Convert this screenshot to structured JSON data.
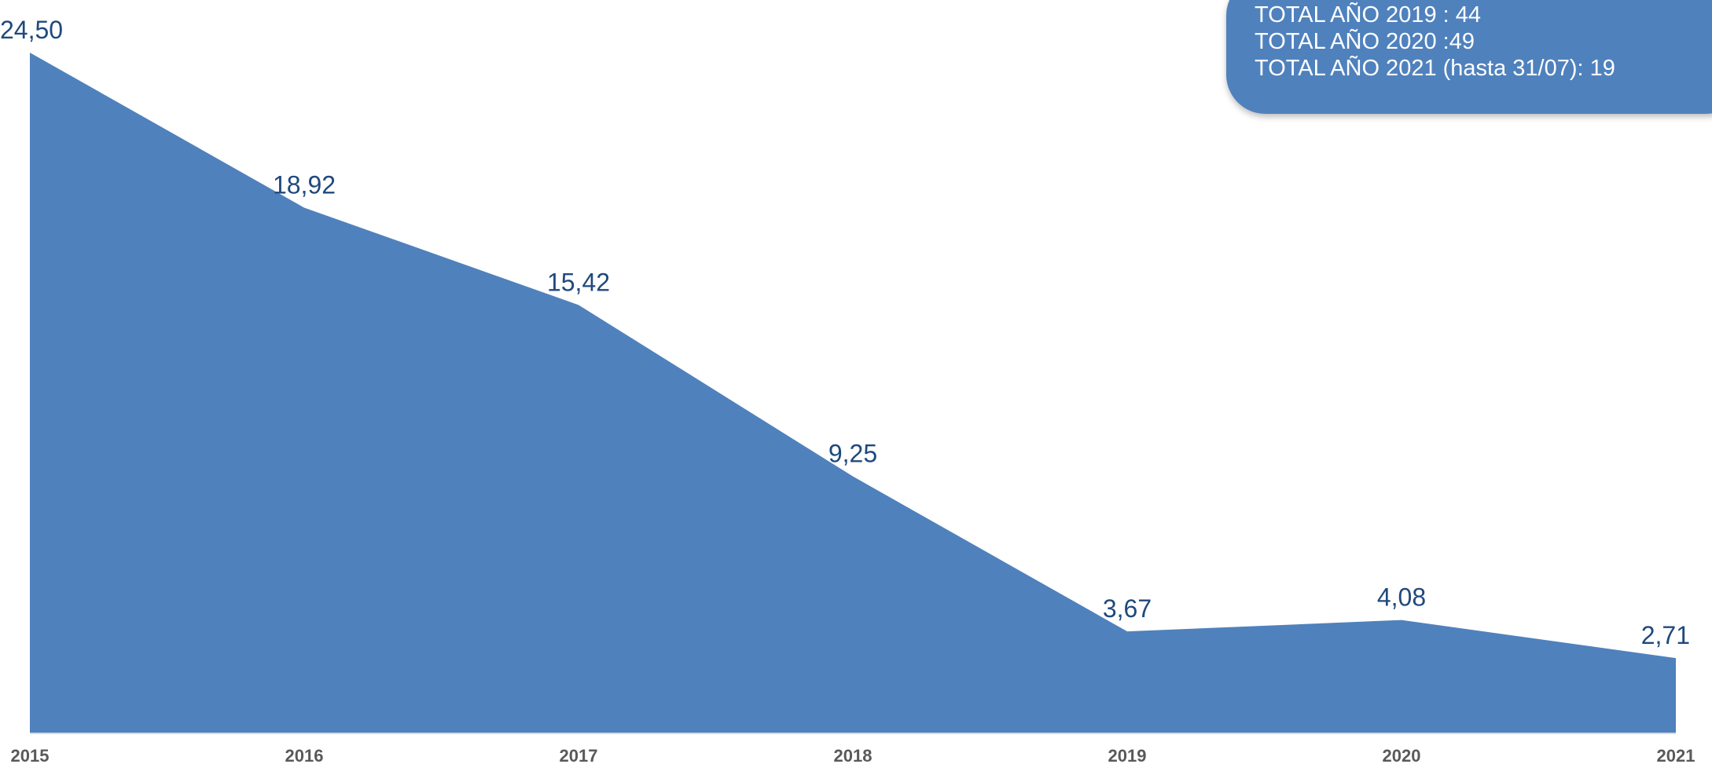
{
  "chart_data": {
    "type": "area",
    "categories": [
      "2015",
      "2016",
      "2017",
      "2018",
      "2019",
      "2020",
      "2021"
    ],
    "values": [
      24.5,
      18.92,
      15.42,
      9.25,
      3.67,
      4.08,
      2.71
    ],
    "data_labels": [
      "24,50",
      "18,92",
      "15,42",
      "9,25",
      "3,67",
      "4,08",
      "2,71"
    ],
    "title": "",
    "xlabel": "",
    "ylabel": "",
    "ylim": [
      0,
      24.5
    ],
    "grid": false,
    "legend": "none",
    "color": "#4f81bd",
    "label_color": "#1f497d"
  },
  "totals": [
    "TOTAL AÑO 2019 : 44",
    "TOTAL AÑO 2020 :49",
    "TOTAL AÑO 2021 (hasta 31/07): 19"
  ]
}
